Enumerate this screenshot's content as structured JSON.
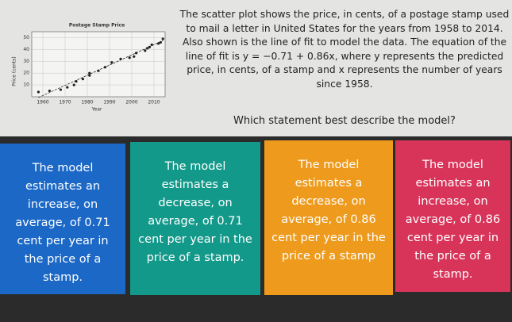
{
  "question": {
    "prompt": "The scatter plot shows the price, in cents, of a postage stamp used to mail a letter in United States for the years from 1958 to 2014. Also shown is the line of fit to model the data. The equation of the line of fit is y = −0.71 + 0.86x, where y represents the predicted price, in cents, of a stamp and x represents the number of years since 1958.",
    "ask": "Which statement best describe the model?"
  },
  "chart_data": {
    "type": "scatter",
    "title": "Postage Stamp Price",
    "x_label": "Year",
    "y_label": "Price (cents)",
    "x": [
      1958,
      1963,
      1968,
      1971,
      1974,
      1975,
      1978,
      1981,
      1981,
      1985,
      1988,
      1991,
      1995,
      1999,
      2001,
      2002,
      2006,
      2007,
      2008,
      2009,
      2012,
      2013,
      2014
    ],
    "values": [
      4,
      5,
      6,
      8,
      10,
      13,
      15,
      18,
      20,
      22,
      25,
      29,
      32,
      33,
      34,
      37,
      39,
      41,
      42,
      44,
      45,
      46,
      49
    ],
    "color": "#222222",
    "line_of_fit": {
      "x": [
        1958,
        2014
      ],
      "y": [
        -0.71,
        47.45
      ]
    },
    "xlim": [
      1955,
      2015
    ],
    "ylim": [
      0,
      55
    ],
    "xticks": [
      1960,
      1970,
      1980,
      1990,
      2000,
      2010
    ],
    "yticks": [
      10,
      20,
      30,
      40,
      50
    ],
    "grid": true
  },
  "answers": [
    {
      "text": "The model estimates an increase, on average, of 0.71 cent per year in the price of a stamp.",
      "color": "#1b68c6"
    },
    {
      "text": "The model estimates a decrease, on average, of 0.71 cent per year in the price of a stamp.",
      "color": "#13998a"
    },
    {
      "text": "The model estimates a decrease, on average, of 0.86 cent per year in the price of a stamp",
      "color": "#ee9a1c"
    },
    {
      "text": "The model estimates an increase, on average, of 0.86 cent per year in the price of a stamp.",
      "color": "#d8345a"
    }
  ]
}
